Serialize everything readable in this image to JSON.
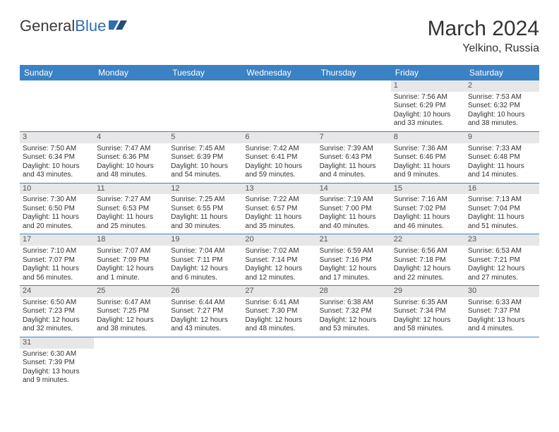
{
  "brand": {
    "part1": "General",
    "part2": "Blue"
  },
  "title": "March 2024",
  "location": "Yelkino, Russia",
  "accent_color": "#3b82c4",
  "daynum_bg": "#e7e7e7",
  "text_color": "#333333",
  "weekdays": [
    "Sunday",
    "Monday",
    "Tuesday",
    "Wednesday",
    "Thursday",
    "Friday",
    "Saturday"
  ],
  "weeks": [
    [
      null,
      null,
      null,
      null,
      null,
      {
        "n": "1",
        "sr": "Sunrise: 7:56 AM",
        "ss": "Sunset: 6:29 PM",
        "dl": "Daylight: 10 hours and 33 minutes."
      },
      {
        "n": "2",
        "sr": "Sunrise: 7:53 AM",
        "ss": "Sunset: 6:32 PM",
        "dl": "Daylight: 10 hours and 38 minutes."
      }
    ],
    [
      {
        "n": "3",
        "sr": "Sunrise: 7:50 AM",
        "ss": "Sunset: 6:34 PM",
        "dl": "Daylight: 10 hours and 43 minutes."
      },
      {
        "n": "4",
        "sr": "Sunrise: 7:47 AM",
        "ss": "Sunset: 6:36 PM",
        "dl": "Daylight: 10 hours and 48 minutes."
      },
      {
        "n": "5",
        "sr": "Sunrise: 7:45 AM",
        "ss": "Sunset: 6:39 PM",
        "dl": "Daylight: 10 hours and 54 minutes."
      },
      {
        "n": "6",
        "sr": "Sunrise: 7:42 AM",
        "ss": "Sunset: 6:41 PM",
        "dl": "Daylight: 10 hours and 59 minutes."
      },
      {
        "n": "7",
        "sr": "Sunrise: 7:39 AM",
        "ss": "Sunset: 6:43 PM",
        "dl": "Daylight: 11 hours and 4 minutes."
      },
      {
        "n": "8",
        "sr": "Sunrise: 7:36 AM",
        "ss": "Sunset: 6:46 PM",
        "dl": "Daylight: 11 hours and 9 minutes."
      },
      {
        "n": "9",
        "sr": "Sunrise: 7:33 AM",
        "ss": "Sunset: 6:48 PM",
        "dl": "Daylight: 11 hours and 14 minutes."
      }
    ],
    [
      {
        "n": "10",
        "sr": "Sunrise: 7:30 AM",
        "ss": "Sunset: 6:50 PM",
        "dl": "Daylight: 11 hours and 20 minutes."
      },
      {
        "n": "11",
        "sr": "Sunrise: 7:27 AM",
        "ss": "Sunset: 6:53 PM",
        "dl": "Daylight: 11 hours and 25 minutes."
      },
      {
        "n": "12",
        "sr": "Sunrise: 7:25 AM",
        "ss": "Sunset: 6:55 PM",
        "dl": "Daylight: 11 hours and 30 minutes."
      },
      {
        "n": "13",
        "sr": "Sunrise: 7:22 AM",
        "ss": "Sunset: 6:57 PM",
        "dl": "Daylight: 11 hours and 35 minutes."
      },
      {
        "n": "14",
        "sr": "Sunrise: 7:19 AM",
        "ss": "Sunset: 7:00 PM",
        "dl": "Daylight: 11 hours and 40 minutes."
      },
      {
        "n": "15",
        "sr": "Sunrise: 7:16 AM",
        "ss": "Sunset: 7:02 PM",
        "dl": "Daylight: 11 hours and 46 minutes."
      },
      {
        "n": "16",
        "sr": "Sunrise: 7:13 AM",
        "ss": "Sunset: 7:04 PM",
        "dl": "Daylight: 11 hours and 51 minutes."
      }
    ],
    [
      {
        "n": "17",
        "sr": "Sunrise: 7:10 AM",
        "ss": "Sunset: 7:07 PM",
        "dl": "Daylight: 11 hours and 56 minutes."
      },
      {
        "n": "18",
        "sr": "Sunrise: 7:07 AM",
        "ss": "Sunset: 7:09 PM",
        "dl": "Daylight: 12 hours and 1 minute."
      },
      {
        "n": "19",
        "sr": "Sunrise: 7:04 AM",
        "ss": "Sunset: 7:11 PM",
        "dl": "Daylight: 12 hours and 6 minutes."
      },
      {
        "n": "20",
        "sr": "Sunrise: 7:02 AM",
        "ss": "Sunset: 7:14 PM",
        "dl": "Daylight: 12 hours and 12 minutes."
      },
      {
        "n": "21",
        "sr": "Sunrise: 6:59 AM",
        "ss": "Sunset: 7:16 PM",
        "dl": "Daylight: 12 hours and 17 minutes."
      },
      {
        "n": "22",
        "sr": "Sunrise: 6:56 AM",
        "ss": "Sunset: 7:18 PM",
        "dl": "Daylight: 12 hours and 22 minutes."
      },
      {
        "n": "23",
        "sr": "Sunrise: 6:53 AM",
        "ss": "Sunset: 7:21 PM",
        "dl": "Daylight: 12 hours and 27 minutes."
      }
    ],
    [
      {
        "n": "24",
        "sr": "Sunrise: 6:50 AM",
        "ss": "Sunset: 7:23 PM",
        "dl": "Daylight: 12 hours and 32 minutes."
      },
      {
        "n": "25",
        "sr": "Sunrise: 6:47 AM",
        "ss": "Sunset: 7:25 PM",
        "dl": "Daylight: 12 hours and 38 minutes."
      },
      {
        "n": "26",
        "sr": "Sunrise: 6:44 AM",
        "ss": "Sunset: 7:27 PM",
        "dl": "Daylight: 12 hours and 43 minutes."
      },
      {
        "n": "27",
        "sr": "Sunrise: 6:41 AM",
        "ss": "Sunset: 7:30 PM",
        "dl": "Daylight: 12 hours and 48 minutes."
      },
      {
        "n": "28",
        "sr": "Sunrise: 6:38 AM",
        "ss": "Sunset: 7:32 PM",
        "dl": "Daylight: 12 hours and 53 minutes."
      },
      {
        "n": "29",
        "sr": "Sunrise: 6:35 AM",
        "ss": "Sunset: 7:34 PM",
        "dl": "Daylight: 12 hours and 58 minutes."
      },
      {
        "n": "30",
        "sr": "Sunrise: 6:33 AM",
        "ss": "Sunset: 7:37 PM",
        "dl": "Daylight: 13 hours and 4 minutes."
      }
    ],
    [
      {
        "n": "31",
        "sr": "Sunrise: 6:30 AM",
        "ss": "Sunset: 7:39 PM",
        "dl": "Daylight: 13 hours and 9 minutes."
      },
      null,
      null,
      null,
      null,
      null,
      null
    ]
  ]
}
